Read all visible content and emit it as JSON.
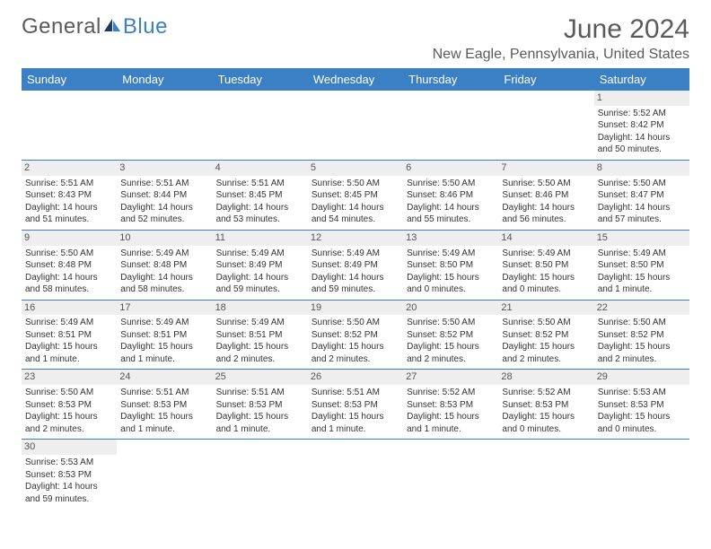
{
  "logo": {
    "general": "General",
    "blue": "Blue"
  },
  "title": "June 2024",
  "location": "New Eagle, Pennsylvania, United States",
  "day_headers": [
    "Sunday",
    "Monday",
    "Tuesday",
    "Wednesday",
    "Thursday",
    "Friday",
    "Saturday"
  ],
  "colors": {
    "header_bg": "#3b7fc4",
    "header_fg": "#ffffff",
    "daynum_bg": "#eeeeee",
    "text": "#333333",
    "title": "#5a5a5a"
  },
  "weeks": [
    [
      null,
      null,
      null,
      null,
      null,
      null,
      {
        "n": "1",
        "sunrise": "Sunrise: 5:52 AM",
        "sunset": "Sunset: 8:42 PM",
        "daylight": "Daylight: 14 hours and 50 minutes."
      }
    ],
    [
      {
        "n": "2",
        "sunrise": "Sunrise: 5:51 AM",
        "sunset": "Sunset: 8:43 PM",
        "daylight": "Daylight: 14 hours and 51 minutes."
      },
      {
        "n": "3",
        "sunrise": "Sunrise: 5:51 AM",
        "sunset": "Sunset: 8:44 PM",
        "daylight": "Daylight: 14 hours and 52 minutes."
      },
      {
        "n": "4",
        "sunrise": "Sunrise: 5:51 AM",
        "sunset": "Sunset: 8:45 PM",
        "daylight": "Daylight: 14 hours and 53 minutes."
      },
      {
        "n": "5",
        "sunrise": "Sunrise: 5:50 AM",
        "sunset": "Sunset: 8:45 PM",
        "daylight": "Daylight: 14 hours and 54 minutes."
      },
      {
        "n": "6",
        "sunrise": "Sunrise: 5:50 AM",
        "sunset": "Sunset: 8:46 PM",
        "daylight": "Daylight: 14 hours and 55 minutes."
      },
      {
        "n": "7",
        "sunrise": "Sunrise: 5:50 AM",
        "sunset": "Sunset: 8:46 PM",
        "daylight": "Daylight: 14 hours and 56 minutes."
      },
      {
        "n": "8",
        "sunrise": "Sunrise: 5:50 AM",
        "sunset": "Sunset: 8:47 PM",
        "daylight": "Daylight: 14 hours and 57 minutes."
      }
    ],
    [
      {
        "n": "9",
        "sunrise": "Sunrise: 5:50 AM",
        "sunset": "Sunset: 8:48 PM",
        "daylight": "Daylight: 14 hours and 58 minutes."
      },
      {
        "n": "10",
        "sunrise": "Sunrise: 5:49 AM",
        "sunset": "Sunset: 8:48 PM",
        "daylight": "Daylight: 14 hours and 58 minutes."
      },
      {
        "n": "11",
        "sunrise": "Sunrise: 5:49 AM",
        "sunset": "Sunset: 8:49 PM",
        "daylight": "Daylight: 14 hours and 59 minutes."
      },
      {
        "n": "12",
        "sunrise": "Sunrise: 5:49 AM",
        "sunset": "Sunset: 8:49 PM",
        "daylight": "Daylight: 14 hours and 59 minutes."
      },
      {
        "n": "13",
        "sunrise": "Sunrise: 5:49 AM",
        "sunset": "Sunset: 8:50 PM",
        "daylight": "Daylight: 15 hours and 0 minutes."
      },
      {
        "n": "14",
        "sunrise": "Sunrise: 5:49 AM",
        "sunset": "Sunset: 8:50 PM",
        "daylight": "Daylight: 15 hours and 0 minutes."
      },
      {
        "n": "15",
        "sunrise": "Sunrise: 5:49 AM",
        "sunset": "Sunset: 8:50 PM",
        "daylight": "Daylight: 15 hours and 1 minute."
      }
    ],
    [
      {
        "n": "16",
        "sunrise": "Sunrise: 5:49 AM",
        "sunset": "Sunset: 8:51 PM",
        "daylight": "Daylight: 15 hours and 1 minute."
      },
      {
        "n": "17",
        "sunrise": "Sunrise: 5:49 AM",
        "sunset": "Sunset: 8:51 PM",
        "daylight": "Daylight: 15 hours and 1 minute."
      },
      {
        "n": "18",
        "sunrise": "Sunrise: 5:49 AM",
        "sunset": "Sunset: 8:51 PM",
        "daylight": "Daylight: 15 hours and 2 minutes."
      },
      {
        "n": "19",
        "sunrise": "Sunrise: 5:50 AM",
        "sunset": "Sunset: 8:52 PM",
        "daylight": "Daylight: 15 hours and 2 minutes."
      },
      {
        "n": "20",
        "sunrise": "Sunrise: 5:50 AM",
        "sunset": "Sunset: 8:52 PM",
        "daylight": "Daylight: 15 hours and 2 minutes."
      },
      {
        "n": "21",
        "sunrise": "Sunrise: 5:50 AM",
        "sunset": "Sunset: 8:52 PM",
        "daylight": "Daylight: 15 hours and 2 minutes."
      },
      {
        "n": "22",
        "sunrise": "Sunrise: 5:50 AM",
        "sunset": "Sunset: 8:52 PM",
        "daylight": "Daylight: 15 hours and 2 minutes."
      }
    ],
    [
      {
        "n": "23",
        "sunrise": "Sunrise: 5:50 AM",
        "sunset": "Sunset: 8:53 PM",
        "daylight": "Daylight: 15 hours and 2 minutes."
      },
      {
        "n": "24",
        "sunrise": "Sunrise: 5:51 AM",
        "sunset": "Sunset: 8:53 PM",
        "daylight": "Daylight: 15 hours and 1 minute."
      },
      {
        "n": "25",
        "sunrise": "Sunrise: 5:51 AM",
        "sunset": "Sunset: 8:53 PM",
        "daylight": "Daylight: 15 hours and 1 minute."
      },
      {
        "n": "26",
        "sunrise": "Sunrise: 5:51 AM",
        "sunset": "Sunset: 8:53 PM",
        "daylight": "Daylight: 15 hours and 1 minute."
      },
      {
        "n": "27",
        "sunrise": "Sunrise: 5:52 AM",
        "sunset": "Sunset: 8:53 PM",
        "daylight": "Daylight: 15 hours and 1 minute."
      },
      {
        "n": "28",
        "sunrise": "Sunrise: 5:52 AM",
        "sunset": "Sunset: 8:53 PM",
        "daylight": "Daylight: 15 hours and 0 minutes."
      },
      {
        "n": "29",
        "sunrise": "Sunrise: 5:53 AM",
        "sunset": "Sunset: 8:53 PM",
        "daylight": "Daylight: 15 hours and 0 minutes."
      }
    ],
    [
      {
        "n": "30",
        "sunrise": "Sunrise: 5:53 AM",
        "sunset": "Sunset: 8:53 PM",
        "daylight": "Daylight: 14 hours and 59 minutes."
      },
      null,
      null,
      null,
      null,
      null,
      null
    ]
  ]
}
